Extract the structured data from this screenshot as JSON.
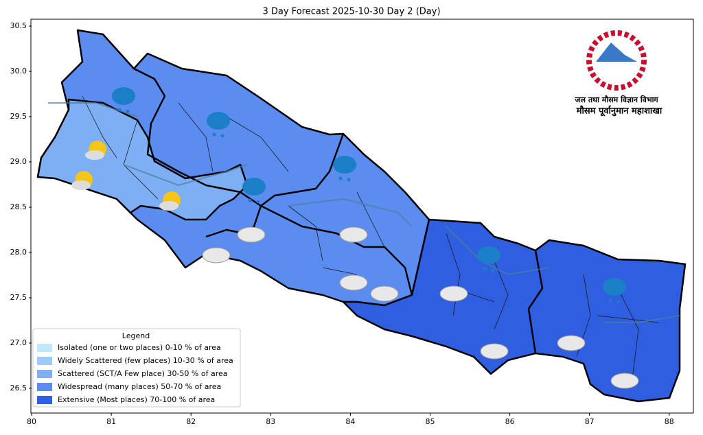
{
  "title": "3 Day Forecast 2025-10-30 Day 2 (Day)",
  "xlim": [
    80,
    88.3
  ],
  "ylim": [
    26.3,
    30.6
  ],
  "xticks": [
    80,
    81,
    82,
    83,
    84,
    85,
    86,
    87,
    88
  ],
  "yticks": [
    26.5,
    {
      "value": 27,
      "label": "27.0"
    },
    27.5,
    {
      "value": 28,
      "label": "28.0"
    },
    28.5,
    {
      "value": 29,
      "label": "29.0"
    },
    29.5,
    {
      "value": 30,
      "label": "30.0"
    },
    30.5
  ],
  "legend": {
    "title": "Legend",
    "items": [
      {
        "label": "Isolated (one or two places)  0-10 % of area",
        "color": "#bfe9fb"
      },
      {
        "label": "Widely Scattered (few places)  10-30 % of area",
        "color": "#9dcaf8"
      },
      {
        "label": "Scattered (SCT/A Few place)  30-50 % of area",
        "color": "#7eaff5"
      },
      {
        "label": "Widespread (many places)  50-70 % of area",
        "color": "#5b8cf0"
      },
      {
        "label": "Extensive (Most places)  70-100 % of area",
        "color": "#2f5fe0"
      }
    ]
  },
  "logo": {
    "department": "जल तथा मौसम विज्ञान विभाग",
    "division": "मौसम पूर्वानुमान महाशाखा"
  }
}
